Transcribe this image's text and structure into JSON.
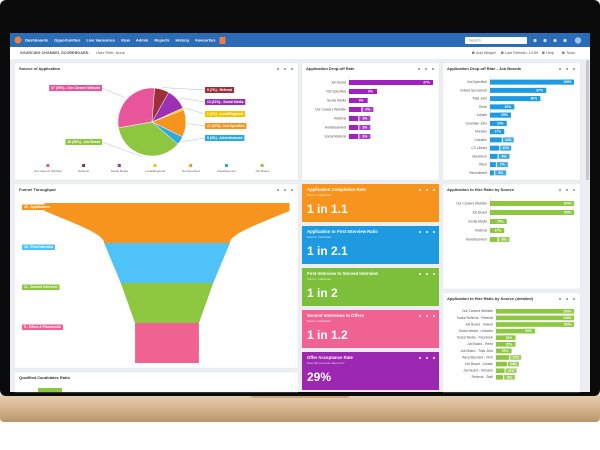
{
  "nav": {
    "items": [
      "Dashboards",
      "Opportunities",
      "Live Vacancies",
      "View",
      "Admin",
      "Reports",
      "History",
      "Favourites"
    ],
    "search": "Search"
  },
  "toolbar": {
    "title": "SOURCING CHANNEL SCOREBOARD",
    "filter": "User Filter: None",
    "actions": [
      "Add Widget",
      "Last Refresh: 14:59",
      "Help",
      "Tools"
    ]
  },
  "source_pie": {
    "type": "pie",
    "title": "Source of Application",
    "categories": [
      "Our Careers Website",
      "Referral",
      "Social Media",
      "Local/Regional",
      "Not Specified",
      "Advertisement",
      "Job Board"
    ],
    "values": [
      29,
      7,
      10,
      1,
      13,
      4,
      36
    ],
    "value_labels": [
      "37 (29%) - Our Careers Website",
      "9 (7%) - Referral",
      "13 (10%) - Social Media",
      "1 (1%) - Local/Regional",
      "17 (13%) - Not Specified",
      "5 (4%) - Advertisement",
      "46 (36%) - Job Board"
    ],
    "colors": [
      "#e8559a",
      "#9c2f3a",
      "#9b30b5",
      "#f5c400",
      "#f7941d",
      "#29a9e6",
      "#8dc63f"
    ]
  },
  "dropoff": {
    "type": "bar",
    "title": "Application Drop-off Rate",
    "categories": [
      "Job Board",
      "Not Specified",
      "Social Media",
      "Our Careers Website",
      "Referral",
      "Advertisement",
      "Social Referral"
    ],
    "values": [
      27,
      9,
      6,
      4,
      3,
      3,
      3
    ],
    "value_labels": [
      "27%",
      "9%",
      "6%",
      "4%",
      "3%",
      "3%",
      "3%"
    ],
    "color": "#a020c0"
  },
  "dropoff_boards": {
    "type": "bar",
    "title": "Application Drop-off Rate - Job Boards",
    "categories": [
      "Not Specified",
      "Indeed Sponsored",
      "Total Jobs",
      "Reed",
      "Jobsite",
      "Guardian Jobs",
      "Monster",
      "LinkedIn",
      "CV Library",
      "Glassdoor",
      "Other",
      "Recruitment"
    ],
    "values": [
      100,
      67,
      60,
      29,
      25,
      20,
      17,
      14,
      11,
      9,
      7,
      5
    ],
    "value_labels": [
      "100%",
      "67%",
      "60%",
      "29%",
      "25%",
      "20%",
      "17%",
      "14%",
      "11%",
      "9%",
      "7%",
      "5%"
    ],
    "color": "#1e9be0"
  },
  "funnel": {
    "type": "funnel",
    "title": "Funnel Throughput",
    "values": [
      43,
      18,
      11,
      5
    ],
    "value_labels": [
      "43 - Applications",
      "18 - First Interview",
      "11 - Second Interview",
      "5 - Offers & Placements"
    ],
    "colors": [
      "#f7941d",
      "#4fc3f7",
      "#8dc63f",
      "#f06292"
    ]
  },
  "kpis": [
    {
      "title": "Application Completion Rate",
      "subtitle": "Source: Individual",
      "value": "1 in 1.1",
      "color": "#f7941d"
    },
    {
      "title": "Application to First Interview Ratio",
      "subtitle": "Source: Individual",
      "value": "1 in 2.1",
      "color": "#1e9be0"
    },
    {
      "title": "First Interview to Second Interview",
      "subtitle": "Source: Individual",
      "value": "1 in 2",
      "color": "#7cbf3a"
    },
    {
      "title": "Second Interviews to Offers",
      "subtitle": "Source: Individual",
      "value": "1 in 1.2",
      "color": "#f06292"
    },
    {
      "title": "Offer Acceptance Rate",
      "subtitle": "How did you hear about us?",
      "value": "29%",
      "color": "#9c27b0"
    }
  ],
  "hire_ratio": {
    "type": "bar",
    "title": "Application to Hire Ratio by Source",
    "categories": [
      "Our Careers Website",
      "Job Board",
      "Social Media",
      "Referral",
      "Advertisement"
    ],
    "values": [
      100,
      100,
      20,
      17,
      9
    ],
    "value_labels": [
      "100%",
      "100%",
      "20%",
      "17%",
      "9%"
    ],
    "color": "#8dc63f"
  },
  "hire_ratio_detailed": {
    "type": "bar",
    "title": "Application to Hire Ratio by Source (detailed)",
    "categories": [
      "Our Careers Website",
      "Social Referral - Referral",
      "Job Board - Indeed",
      "Social Media - LinkedIn",
      "Social Media - Facebook",
      "Job Board - Reed",
      "Job Board - Total Jobs",
      "Advertisement - Print",
      "Job Board - Jobsite",
      "Job Board - Monster",
      "Referral - Staff"
    ],
    "values": [
      100,
      100,
      100,
      50,
      25,
      25,
      20,
      17,
      14,
      11,
      9
    ],
    "value_labels": [
      "100%",
      "100%",
      "100%",
      "50%",
      "25%",
      "25%",
      "20%",
      "17%",
      "14%",
      "11%",
      "9%"
    ],
    "color": "#8dc63f"
  },
  "qualified": {
    "title": "Qualified Candidates Ratio"
  }
}
